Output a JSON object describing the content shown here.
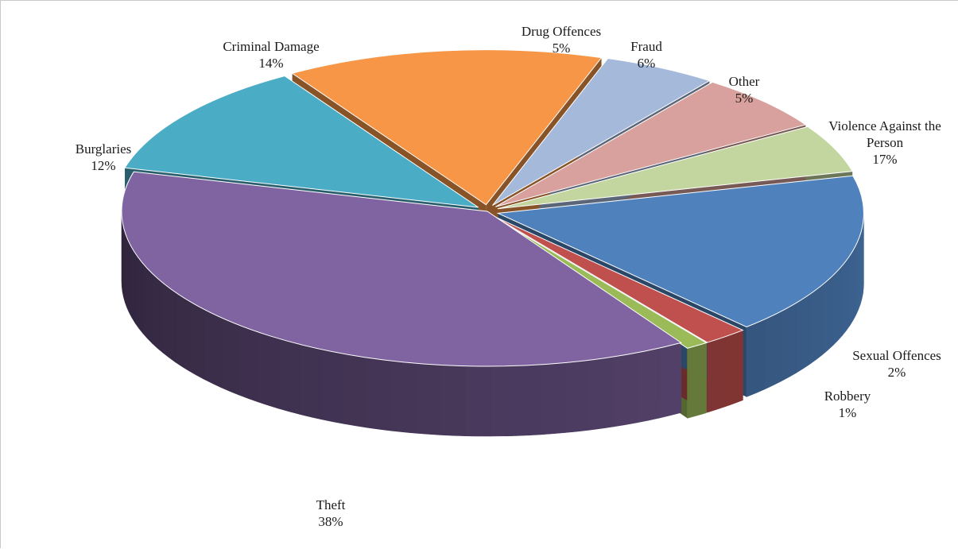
{
  "chart_data": {
    "type": "pie",
    "title": "",
    "style": "3d-exploded",
    "unit": "%",
    "slices": [
      {
        "label": "Violence Against the Person",
        "label_lines": [
          "Violence Against the",
          "Person"
        ],
        "value": 17,
        "value_text": "17%",
        "color": "#4f81bd"
      },
      {
        "label": "Sexual Offences",
        "label_lines": [
          "Sexual Offences"
        ],
        "value": 2,
        "value_text": "2%",
        "color": "#c0504d"
      },
      {
        "label": "Robbery",
        "label_lines": [
          "Robbery"
        ],
        "value": 1,
        "value_text": "1%",
        "color": "#9bbb59"
      },
      {
        "label": "Theft",
        "label_lines": [
          "Theft"
        ],
        "value": 38,
        "value_text": "38%",
        "color": "#8064a2"
      },
      {
        "label": "Burglaries",
        "label_lines": [
          "Burglaries"
        ],
        "value": 12,
        "value_text": "12%",
        "color": "#4bacc6"
      },
      {
        "label": "Criminal Damage",
        "label_lines": [
          "Criminal Damage"
        ],
        "value": 14,
        "value_text": "14%",
        "color": "#f79646"
      },
      {
        "label": "Drug Offences",
        "label_lines": [
          "Drug Offences"
        ],
        "value": 5,
        "value_text": "5%",
        "color": "#a5b9da"
      },
      {
        "label": "Fraud",
        "label_lines": [
          "Fraud"
        ],
        "value": 6,
        "value_text": "6%",
        "color": "#d9a19d"
      },
      {
        "label": "Other",
        "label_lines": [
          "Other"
        ],
        "value": 5,
        "value_text": "5%",
        "color": "#c4d6a0"
      }
    ]
  }
}
